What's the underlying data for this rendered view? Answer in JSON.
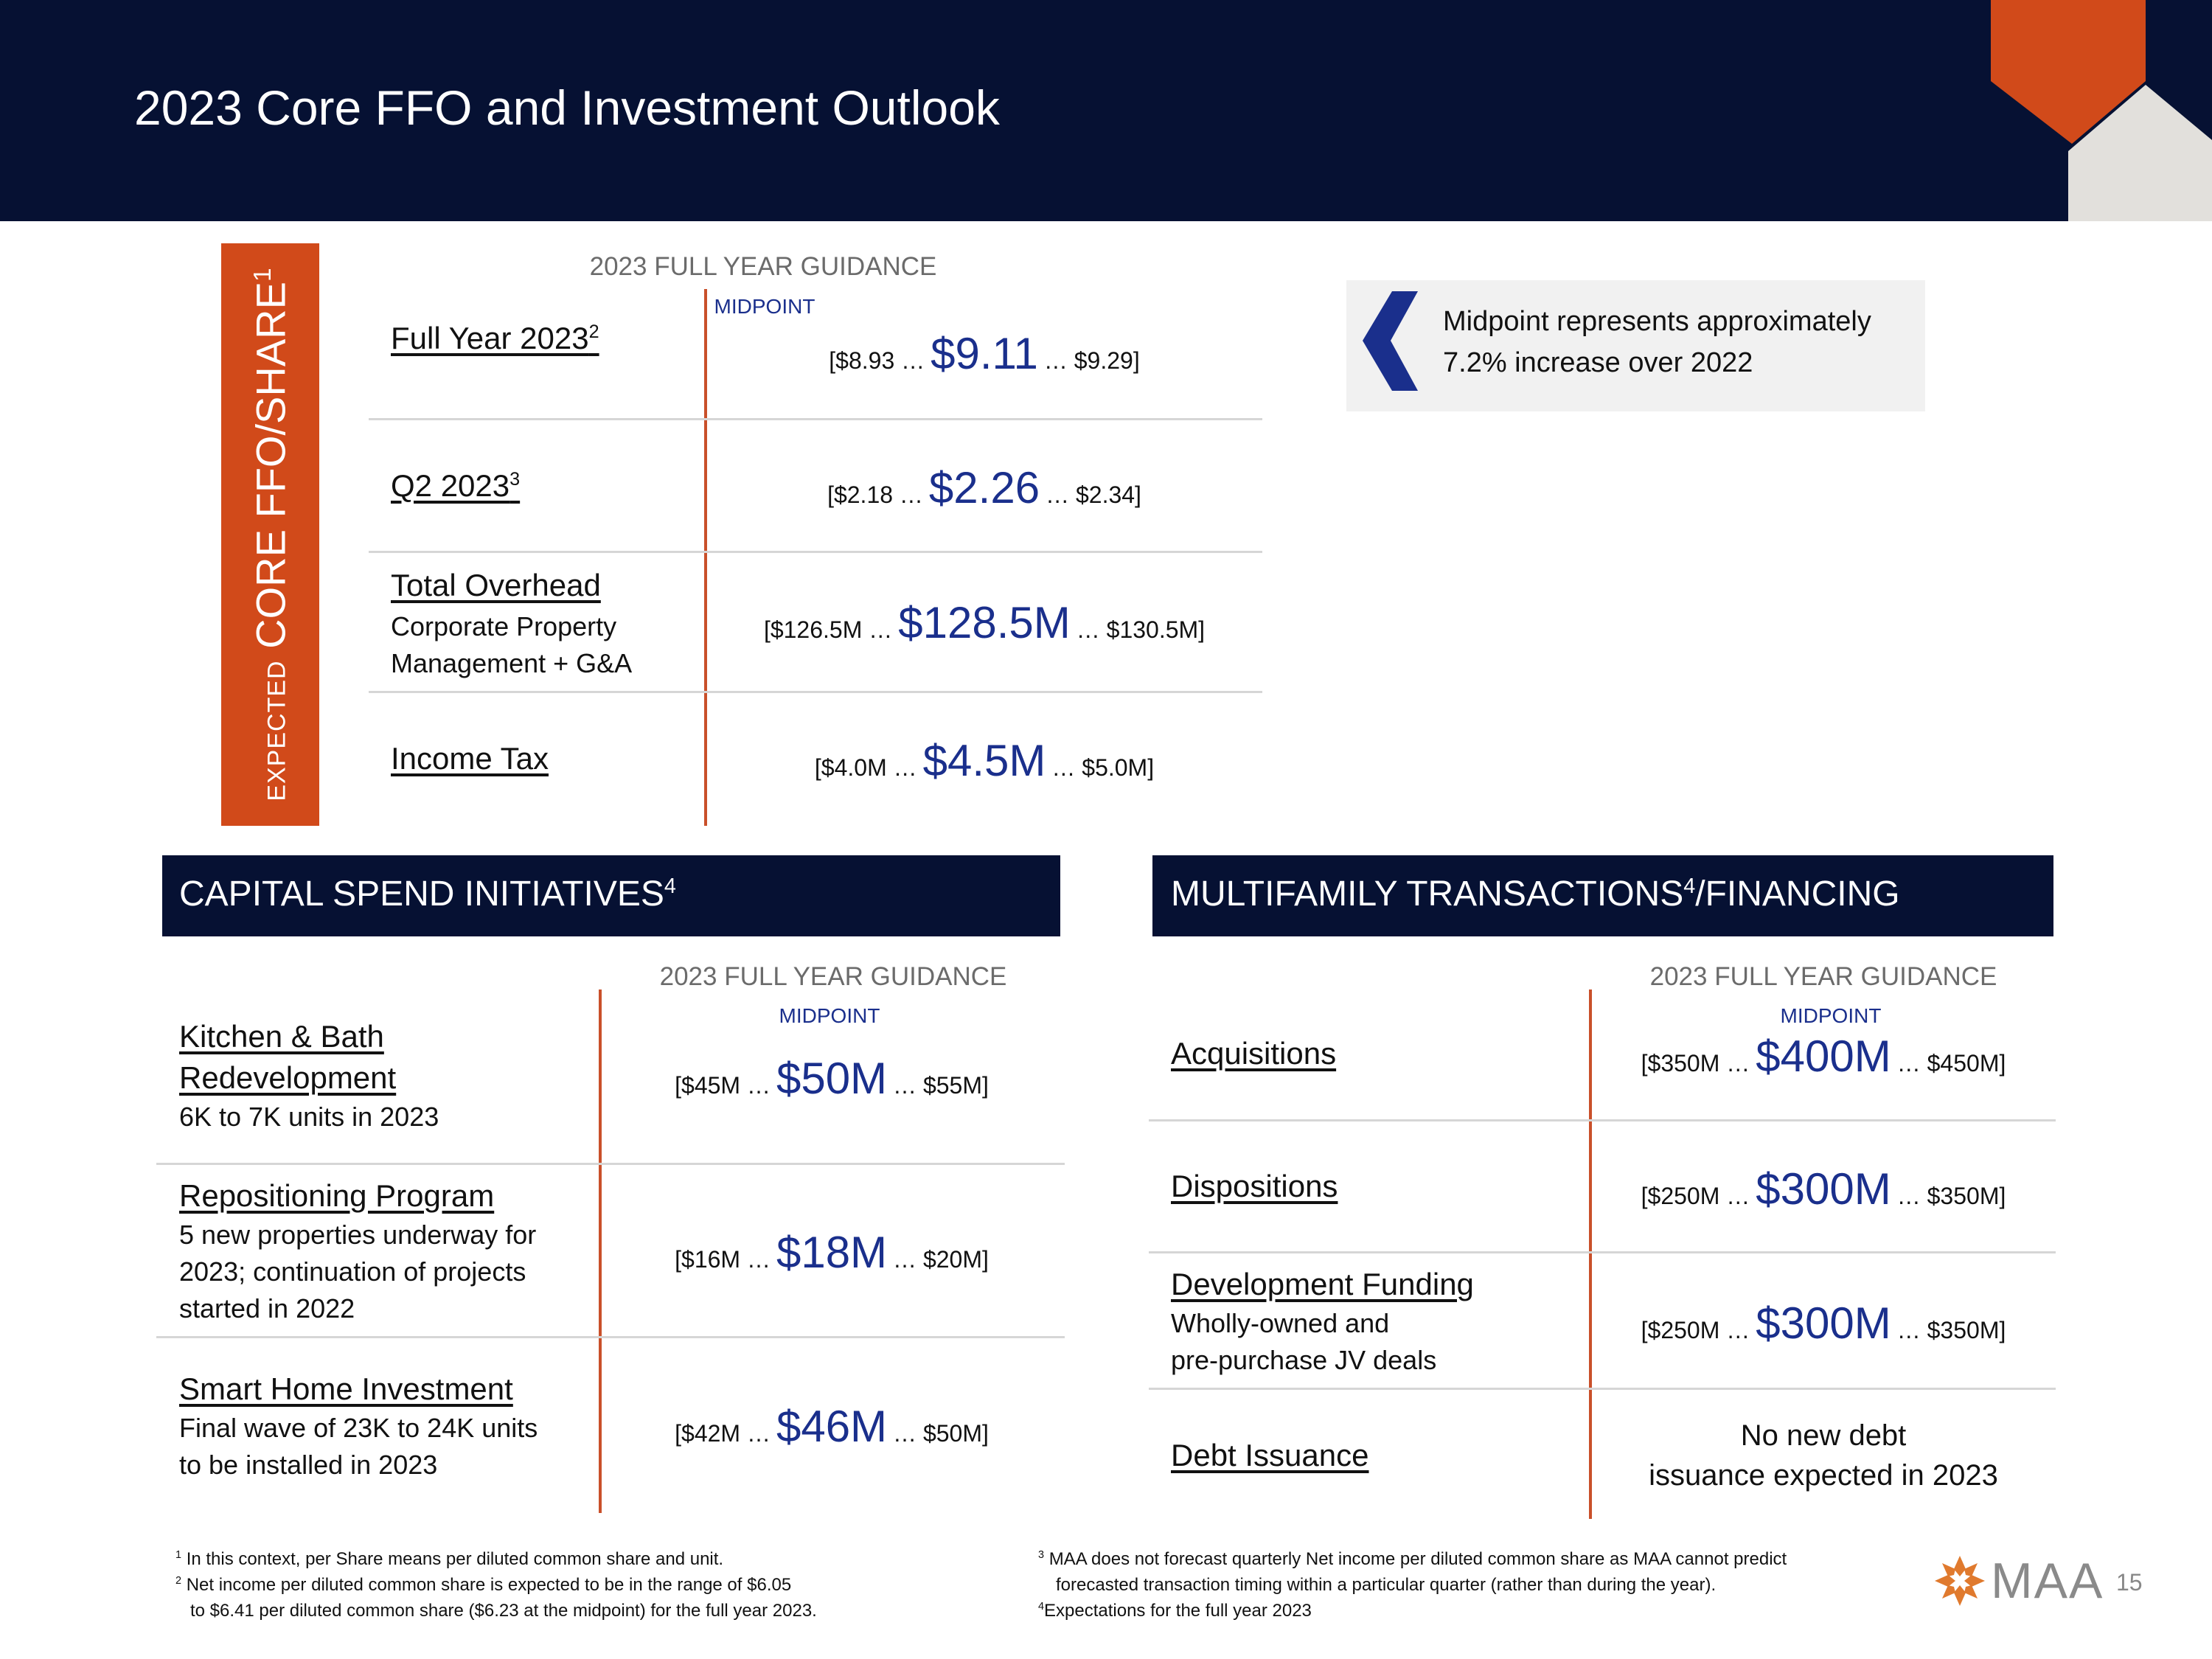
{
  "page": {
    "title": "2023 Core FFO and Investment Outlook",
    "page_number": "15",
    "logo_text": "MAA",
    "colors": {
      "navy": "#061133",
      "orange": "#d14a1a",
      "accent_blue": "#1a2f8c"
    }
  },
  "ffo": {
    "vertical_label_prefix": "EXPECTED",
    "vertical_label_main": "CORE FFO/SHARE",
    "vertical_label_sup": "1",
    "guidance_header": "2023 FULL YEAR GUIDANCE",
    "midpoint_label": "MIDPOINT",
    "rows": [
      {
        "label": "Full Year 2023",
        "sup": "2",
        "low": "[$8.93 …",
        "mid": "$9.11",
        "high": "… $9.29]"
      },
      {
        "label": "Q2 2023",
        "sup": "3",
        "low": "[$2.18 …",
        "mid": "$2.26",
        "high": "… $2.34]"
      },
      {
        "label": "Total Overhead",
        "sub1": "Corporate Property",
        "sub2": "Management + G&A",
        "low": "[$126.5M …",
        "mid": "$128.5M",
        "high": "… $130.5M]"
      },
      {
        "label": "Income Tax",
        "low": "[$4.0M …",
        "mid": "$4.5M",
        "high": "… $5.0M]"
      }
    ]
  },
  "callout": {
    "line1": "Midpoint represents approximately",
    "line2": "7.2% increase over 2022",
    "icon": "chevron-left-icon"
  },
  "capital": {
    "bar_title": "CAPITAL SPEND INITIATIVES",
    "bar_sup": "4",
    "guidance_header": "2023 FULL YEAR GUIDANCE",
    "midpoint_label": "MIDPOINT",
    "rows": [
      {
        "label1": "Kitchen & Bath",
        "label2": "Redevelopment",
        "sub1": "6K to 7K units in 2023",
        "low": "[$45M …",
        "mid": "$50M",
        "high": "… $55M]"
      },
      {
        "label1": "Repositioning Program",
        "sub1": "5 new properties underway for",
        "sub2": "2023; continuation of projects",
        "sub3": "started in 2022",
        "low": "[$16M …",
        "mid": "$18M",
        "high": "… $20M]"
      },
      {
        "label1": "Smart Home Investment",
        "sub1": "Final wave of 23K to 24K units",
        "sub2": "to be installed in 2023",
        "low": "[$42M …",
        "mid": "$46M",
        "high": "… $50M]"
      }
    ]
  },
  "transactions": {
    "bar_title_a": "MULTIFAMILY TRANSACTIONS",
    "bar_sup": "4",
    "bar_title_b": "/FINANCING",
    "guidance_header": "2023 FULL YEAR GUIDANCE",
    "midpoint_label": "MIDPOINT",
    "rows": [
      {
        "label": "Acquisitions",
        "low": "[$350M …",
        "mid": "$400M",
        "high": "… $450M]"
      },
      {
        "label": "Dispositions",
        "low": "[$250M …",
        "mid": "$300M",
        "high": "… $350M]"
      },
      {
        "label": "Development Funding",
        "sub1": "Wholly-owned and",
        "sub2": "pre-purchase JV deals",
        "low": "[$250M …",
        "mid": "$300M",
        "high": "… $350M]"
      },
      {
        "label": "Debt Issuance",
        "text1": "No new debt",
        "text2": "issuance expected in 2023"
      }
    ]
  },
  "footnotes": {
    "n1_mark": "1",
    "n1": "In this context, per Share means per diluted common share and unit.",
    "n2_mark": "2",
    "n2a": "Net income per diluted common share is expected to be in the range of $6.05",
    "n2b": "to $6.41 per diluted common share ($6.23 at the midpoint) for the full year 2023.",
    "n3_mark": "3",
    "n3a": "MAA does not forecast quarterly Net income per diluted common share as MAA cannot predict",
    "n3b": "forecasted transaction timing within a particular quarter (rather than during the year).",
    "n4_mark": "4",
    "n4": "Expectations for the full year 2023"
  }
}
